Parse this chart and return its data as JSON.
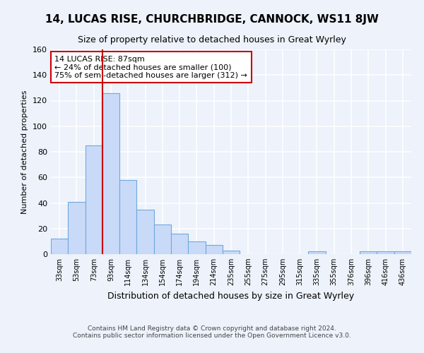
{
  "title": "14, LUCAS RISE, CHURCHBRIDGE, CANNOCK, WS11 8JW",
  "subtitle": "Size of property relative to detached houses in Great Wyrley",
  "xlabel": "Distribution of detached houses by size in Great Wyrley",
  "ylabel": "Number of detached properties",
  "footer_line1": "Contains HM Land Registry data © Crown copyright and database right 2024.",
  "footer_line2": "Contains public sector information licensed under the Open Government Licence v3.0.",
  "bar_labels": [
    "33sqm",
    "53sqm",
    "73sqm",
    "93sqm",
    "114sqm",
    "134sqm",
    "154sqm",
    "174sqm",
    "194sqm",
    "214sqm",
    "235sqm",
    "255sqm",
    "275sqm",
    "295sqm",
    "315sqm",
    "335sqm",
    "355sqm",
    "376sqm",
    "396sqm",
    "416sqm",
    "436sqm"
  ],
  "bar_values": [
    12,
    41,
    85,
    126,
    58,
    35,
    23,
    16,
    10,
    7,
    3,
    0,
    0,
    0,
    0,
    2,
    0,
    0,
    2,
    2,
    2
  ],
  "bar_color": "#c9daf8",
  "bar_edge_color": "#6fa8dc",
  "vline_color": "#cc0000",
  "annotation_title": "14 LUCAS RISE: 87sqm",
  "annotation_line1": "← 24% of detached houses are smaller (100)",
  "annotation_line2": "75% of semi-detached houses are larger (312) →",
  "annotation_box_color": "white",
  "annotation_box_edge": "#cc0000",
  "ylim": [
    0,
    160
  ],
  "yticks": [
    0,
    20,
    40,
    60,
    80,
    100,
    120,
    140,
    160
  ],
  "background_color": "#edf2fb",
  "grid_color": "white",
  "title_fontsize": 11,
  "subtitle_fontsize": 9
}
